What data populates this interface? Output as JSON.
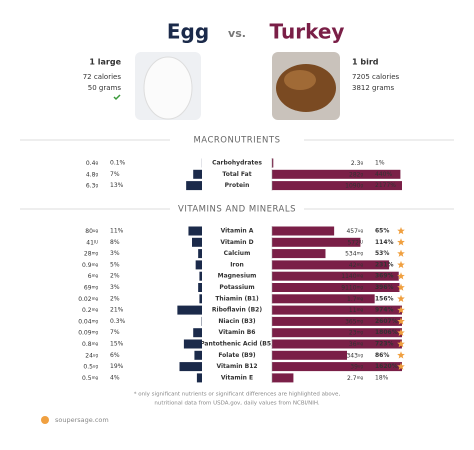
{
  "header": {
    "left_name": "Egg",
    "vs": "vs.",
    "right_name": "Turkey"
  },
  "left_info": {
    "serving": "1 large",
    "calories": "72 calories",
    "grams": "50 grams"
  },
  "right_info": {
    "serving": "1 bird",
    "calories": "7205 calories",
    "grams": "3812 grams"
  },
  "sections": [
    {
      "title": "MACRONUTRIENTS",
      "rows": [
        {
          "name": "Carbohydrates",
          "egg": {
            "amount": "0.4",
            "unit": "g",
            "pct": 0.1,
            "pct_label": "0.1%"
          },
          "turkey": {
            "amount": "2.3",
            "unit": "g",
            "pct": 1,
            "pct_label": "1%"
          },
          "star": false
        },
        {
          "name": "Total Fat",
          "egg": {
            "amount": "4.8",
            "unit": "g",
            "pct": 7,
            "pct_label": "7%"
          },
          "turkey": {
            "amount": "282",
            "unit": "g",
            "pct": 440,
            "pct_label": "440%"
          },
          "star": false
        },
        {
          "name": "Protein",
          "egg": {
            "amount": "6.3",
            "unit": "g",
            "pct": 13,
            "pct_label": "13%"
          },
          "turkey": {
            "amount": "1090",
            "unit": "g",
            "pct": 2177,
            "pct_label": "2177%"
          },
          "star": false
        }
      ]
    },
    {
      "title": "VITAMINS AND MINERALS",
      "rows": [
        {
          "name": "Vitamin A",
          "egg": {
            "amount": "80",
            "unit": "ug",
            "pct": 11,
            "pct_label": "11%"
          },
          "turkey": {
            "amount": "457",
            "unit": "ug",
            "pct": 65,
            "pct_label": "65%"
          },
          "star": true
        },
        {
          "name": "Vitamin D",
          "egg": {
            "amount": "41",
            "unit": "IU",
            "pct": 8,
            "pct_label": "8%"
          },
          "turkey": {
            "amount": "572",
            "unit": "IU",
            "pct": 114,
            "pct_label": "114%"
          },
          "star": true
        },
        {
          "name": "Calcium",
          "egg": {
            "amount": "28",
            "unit": "mg",
            "pct": 3,
            "pct_label": "3%"
          },
          "turkey": {
            "amount": "534",
            "unit": "mg",
            "pct": 53,
            "pct_label": "53%"
          },
          "star": true
        },
        {
          "name": "Iron",
          "egg": {
            "amount": "0.9",
            "unit": "mg",
            "pct": 5,
            "pct_label": "5%"
          },
          "turkey": {
            "amount": "42",
            "unit": "mg",
            "pct": 231,
            "pct_label": "231%"
          },
          "star": true
        },
        {
          "name": "Magnesium",
          "egg": {
            "amount": "6",
            "unit": "mg",
            "pct": 2,
            "pct_label": "2%"
          },
          "turkey": {
            "amount": "1140",
            "unit": "mg",
            "pct": 369,
            "pct_label": "369%"
          },
          "star": true
        },
        {
          "name": "Potassium",
          "egg": {
            "amount": "69",
            "unit": "mg",
            "pct": 3,
            "pct_label": "3%"
          },
          "turkey": {
            "amount": "9110",
            "unit": "mg",
            "pct": 396,
            "pct_label": "396%"
          },
          "star": true
        },
        {
          "name": "Thiamin (B1)",
          "egg": {
            "amount": "0.02",
            "unit": "mg",
            "pct": 2,
            "pct_label": "2%"
          },
          "turkey": {
            "amount": "1.7",
            "unit": "mg",
            "pct": 156,
            "pct_label": "156%"
          },
          "star": true
        },
        {
          "name": "Riboflavin (B2)",
          "egg": {
            "amount": "0.2",
            "unit": "mg",
            "pct": 21,
            "pct_label": "21%"
          },
          "turkey": {
            "amount": "11",
            "unit": "mg",
            "pct": 974,
            "pct_label": "974%"
          },
          "star": true
        },
        {
          "name": "Niacin (B3)",
          "egg": {
            "amount": "0.04",
            "unit": "mg",
            "pct": 0.3,
            "pct_label": "0.3%"
          },
          "turkey": {
            "amount": "365",
            "unit": "mg",
            "pct": 2607,
            "pct_label": "2607%"
          },
          "star": true
        },
        {
          "name": "Vitamin B6",
          "egg": {
            "amount": "0.09",
            "unit": "mg",
            "pct": 7,
            "pct_label": "7%"
          },
          "turkey": {
            "amount": "23",
            "unit": "mg",
            "pct": 1806,
            "pct_label": "1806%"
          },
          "star": true
        },
        {
          "name": "Pantothenic Acid (B5)",
          "egg": {
            "amount": "0.8",
            "unit": "mg",
            "pct": 15,
            "pct_label": "15%"
          },
          "turkey": {
            "amount": "36",
            "unit": "mg",
            "pct": 723,
            "pct_label": "723%"
          },
          "star": true
        },
        {
          "name": "Folate (B9)",
          "egg": {
            "amount": "24",
            "unit": "ug",
            "pct": 6,
            "pct_label": "6%"
          },
          "turkey": {
            "amount": "343",
            "unit": "ug",
            "pct": 86,
            "pct_label": "86%"
          },
          "star": true
        },
        {
          "name": "Vitamin B12",
          "egg": {
            "amount": "0.5",
            "unit": "ug",
            "pct": 19,
            "pct_label": "19%"
          },
          "turkey": {
            "amount": "39",
            "unit": "ug",
            "pct": 1620,
            "pct_label": "1620%"
          },
          "star": true
        },
        {
          "name": "Vitamin E",
          "egg": {
            "amount": "0.5",
            "unit": "mg",
            "pct": 4,
            "pct_label": "4%"
          },
          "turkey": {
            "amount": "2.7",
            "unit": "mg",
            "pct": 18,
            "pct_label": "18%"
          },
          "star": false
        }
      ]
    }
  ],
  "footnote": [
    "* only significant nutrients or significant differences are highlighted above,",
    "nutritional data from USDA.gov, daily values from NCBI/NIH."
  ],
  "logo": "soupersage.com"
}
